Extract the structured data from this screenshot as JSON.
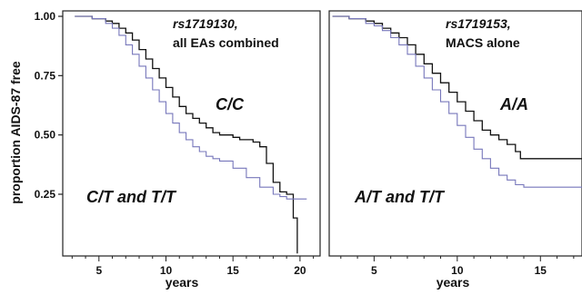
{
  "figure": {
    "ylabel": "proportion AIDS-87 free",
    "y_ticks": [
      "1.00",
      "0.75",
      "0.50",
      "0.25"
    ]
  },
  "chart_data": [
    {
      "type": "line",
      "snp": "rs1719130,",
      "cohort": "all EAs combined",
      "xlabel": "years",
      "x_ticks": [
        "5",
        "10",
        "15",
        "20"
      ],
      "xlim": [
        2.3,
        21.5
      ],
      "ylim": [
        0.0,
        1.0
      ],
      "grid": false,
      "labels": [
        "C/C",
        "C/T and T/T"
      ],
      "series": [
        {
          "name": "C/C",
          "color": "#111111",
          "x": [
            3.2,
            4.5,
            5.5,
            6.0,
            6.5,
            7.0,
            7.5,
            8.0,
            8.5,
            9.0,
            9.5,
            10.0,
            10.5,
            11.0,
            11.5,
            12.0,
            12.5,
            13.0,
            13.5,
            14.0,
            14.5,
            15.0,
            15.5,
            16.0,
            16.5,
            17.0,
            17.5,
            18.0,
            18.5,
            19.0,
            19.5,
            19.8
          ],
          "y": [
            1.0,
            0.99,
            0.98,
            0.97,
            0.95,
            0.93,
            0.9,
            0.86,
            0.82,
            0.78,
            0.74,
            0.7,
            0.66,
            0.62,
            0.59,
            0.57,
            0.55,
            0.53,
            0.51,
            0.5,
            0.5,
            0.49,
            0.48,
            0.48,
            0.47,
            0.45,
            0.38,
            0.3,
            0.26,
            0.25,
            0.15,
            0.0
          ]
        },
        {
          "name": "C/T and T/T",
          "color": "#7777bb",
          "x": [
            3.2,
            4.5,
            5.5,
            6.0,
            6.5,
            7.0,
            7.5,
            8.0,
            8.5,
            9.0,
            9.5,
            10.0,
            10.5,
            11.0,
            11.5,
            12.0,
            12.5,
            13.0,
            13.5,
            14.0,
            15.0,
            16.0,
            17.0,
            18.0,
            18.5,
            19.0,
            20.5
          ],
          "y": [
            1.0,
            0.99,
            0.97,
            0.95,
            0.92,
            0.88,
            0.84,
            0.79,
            0.74,
            0.69,
            0.64,
            0.59,
            0.55,
            0.51,
            0.48,
            0.45,
            0.43,
            0.41,
            0.4,
            0.39,
            0.36,
            0.32,
            0.28,
            0.25,
            0.24,
            0.23,
            0.23
          ]
        }
      ]
    },
    {
      "type": "line",
      "snp": "rs1719153,",
      "cohort": "MACS alone",
      "xlabel": "years",
      "x_ticks": [
        "5",
        "10",
        "15"
      ],
      "xlim": [
        2.3,
        17.5
      ],
      "ylim": [
        0.0,
        1.0
      ],
      "grid": false,
      "labels": [
        "A/A",
        "A/T and T/T"
      ],
      "series": [
        {
          "name": "A/A",
          "color": "#111111",
          "x": [
            2.5,
            3.5,
            4.5,
            5.0,
            5.5,
            6.0,
            6.5,
            7.0,
            7.5,
            8.0,
            8.5,
            9.0,
            9.5,
            10.0,
            10.5,
            11.0,
            11.5,
            12.0,
            12.5,
            13.0,
            13.5,
            13.8,
            17.5
          ],
          "y": [
            1.0,
            0.99,
            0.98,
            0.97,
            0.95,
            0.93,
            0.91,
            0.88,
            0.84,
            0.8,
            0.76,
            0.72,
            0.68,
            0.64,
            0.6,
            0.56,
            0.52,
            0.5,
            0.48,
            0.46,
            0.43,
            0.4,
            0.4
          ]
        },
        {
          "name": "A/T and T/T",
          "color": "#7777bb",
          "x": [
            2.5,
            3.5,
            4.5,
            5.0,
            5.5,
            6.0,
            6.5,
            7.0,
            7.5,
            8.0,
            8.5,
            9.0,
            9.5,
            10.0,
            10.5,
            11.0,
            11.5,
            12.0,
            12.5,
            13.0,
            13.5,
            14.0,
            17.5
          ],
          "y": [
            1.0,
            0.99,
            0.97,
            0.96,
            0.94,
            0.91,
            0.88,
            0.84,
            0.79,
            0.74,
            0.69,
            0.64,
            0.59,
            0.54,
            0.49,
            0.44,
            0.4,
            0.36,
            0.33,
            0.31,
            0.29,
            0.28,
            0.28
          ]
        }
      ]
    }
  ]
}
